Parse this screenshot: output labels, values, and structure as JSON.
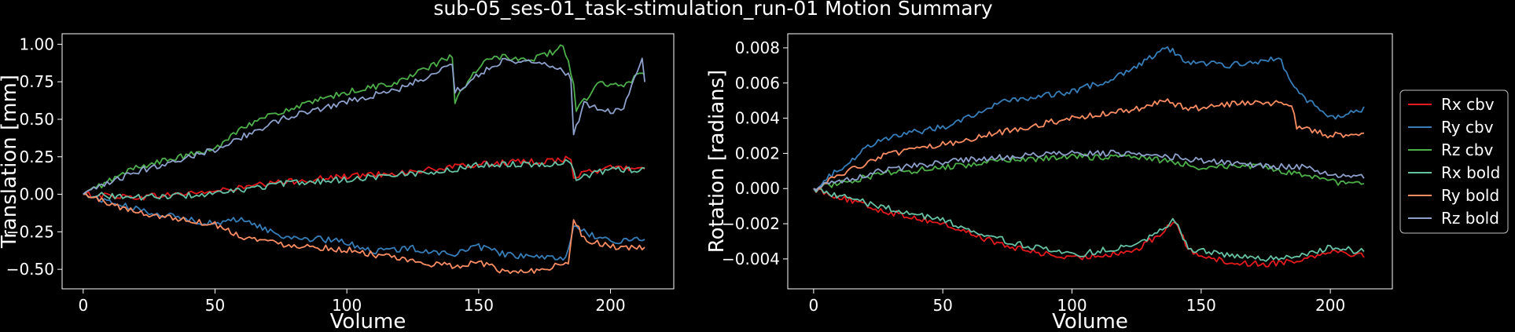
{
  "figure_title": "sub-05_ses-01_task-stimulation_run-01 Motion Summary",
  "colors": {
    "background": "#000000",
    "foreground": "#ffffff",
    "Rx cbv": "#e41a1c",
    "Ry cbv": "#377eb8",
    "Rz cbv": "#4daf4a",
    "Rx bold": "#66c2a5",
    "Ry bold": "#fc8d62",
    "Rz bold": "#8da0cb"
  },
  "chart_data": [
    {
      "type": "line",
      "xlabel": "Volume",
      "ylabel": "Translation [mm]",
      "xlim": [
        -8,
        224
      ],
      "ylim": [
        -0.63,
        1.07
      ],
      "xticks": [
        0,
        50,
        100,
        150,
        200
      ],
      "yticks": [
        -0.5,
        -0.25,
        0.0,
        0.25,
        0.5,
        0.75,
        1.0
      ],
      "yticklabels": [
        "−0.50",
        "−0.25",
        "0.00",
        "0.25",
        "0.50",
        "0.75",
        "1.00"
      ],
      "grid": false,
      "n_volumes": 214,
      "series": [
        {
          "color": "#e41a1c",
          "points": [
            [
              0,
              0.0
            ],
            [
              20,
              -0.02
            ],
            [
              50,
              0.02
            ],
            [
              75,
              0.08
            ],
            [
              100,
              0.12
            ],
            [
              125,
              0.15
            ],
            [
              140,
              0.18
            ],
            [
              150,
              0.2
            ],
            [
              160,
              0.21
            ],
            [
              175,
              0.22
            ],
            [
              185,
              0.24
            ],
            [
              186,
              0.12
            ],
            [
              200,
              0.18
            ],
            [
              213,
              0.17
            ]
          ]
        },
        {
          "color": "#377eb8",
          "points": [
            [
              0,
              0.0
            ],
            [
              20,
              -0.1
            ],
            [
              50,
              -0.2
            ],
            [
              60,
              -0.16
            ],
            [
              75,
              -0.28
            ],
            [
              90,
              -0.3
            ],
            [
              100,
              -0.32
            ],
            [
              110,
              -0.38
            ],
            [
              125,
              -0.36
            ],
            [
              140,
              -0.4
            ],
            [
              150,
              -0.35
            ],
            [
              160,
              -0.4
            ],
            [
              175,
              -0.43
            ],
            [
              183,
              -0.42
            ],
            [
              186,
              -0.22
            ],
            [
              200,
              -0.32
            ],
            [
              213,
              -0.29
            ]
          ]
        },
        {
          "color": "#4daf4a",
          "points": [
            [
              0,
              0.0
            ],
            [
              20,
              0.18
            ],
            [
              50,
              0.3
            ],
            [
              60,
              0.45
            ],
            [
              75,
              0.55
            ],
            [
              100,
              0.68
            ],
            [
              120,
              0.75
            ],
            [
              135,
              0.88
            ],
            [
              140,
              0.92
            ],
            [
              141,
              0.62
            ],
            [
              148,
              0.8
            ],
            [
              155,
              0.92
            ],
            [
              170,
              0.9
            ],
            [
              180,
              0.96
            ],
            [
              182,
              1.0
            ],
            [
              186,
              0.75
            ],
            [
              187,
              0.55
            ],
            [
              195,
              0.74
            ],
            [
              205,
              0.72
            ],
            [
              213,
              0.82
            ]
          ]
        },
        {
          "color": "#66c2a5",
          "points": [
            [
              0,
              0.0
            ],
            [
              20,
              -0.02
            ],
            [
              50,
              0.0
            ],
            [
              75,
              0.07
            ],
            [
              100,
              0.1
            ],
            [
              125,
              0.14
            ],
            [
              140,
              0.16
            ],
            [
              150,
              0.2
            ],
            [
              175,
              0.2
            ],
            [
              185,
              0.22
            ],
            [
              187,
              0.1
            ],
            [
              200,
              0.17
            ],
            [
              213,
              0.16
            ]
          ]
        },
        {
          "color": "#fc8d62",
          "points": [
            [
              0,
              0.0
            ],
            [
              20,
              -0.12
            ],
            [
              50,
              -0.2
            ],
            [
              60,
              -0.28
            ],
            [
              75,
              -0.33
            ],
            [
              100,
              -0.37
            ],
            [
              110,
              -0.4
            ],
            [
              125,
              -0.45
            ],
            [
              140,
              -0.48
            ],
            [
              150,
              -0.45
            ],
            [
              160,
              -0.52
            ],
            [
              175,
              -0.5
            ],
            [
              184,
              -0.45
            ],
            [
              186,
              -0.15
            ],
            [
              190,
              -0.3
            ],
            [
              200,
              -0.35
            ],
            [
              213,
              -0.36
            ]
          ]
        },
        {
          "color": "#8da0cb",
          "points": [
            [
              0,
              0.0
            ],
            [
              20,
              0.15
            ],
            [
              50,
              0.3
            ],
            [
              60,
              0.38
            ],
            [
              75,
              0.5
            ],
            [
              100,
              0.62
            ],
            [
              120,
              0.7
            ],
            [
              135,
              0.82
            ],
            [
              140,
              0.88
            ],
            [
              141,
              0.68
            ],
            [
              150,
              0.8
            ],
            [
              160,
              0.9
            ],
            [
              170,
              0.88
            ],
            [
              180,
              0.85
            ],
            [
              185,
              0.78
            ],
            [
              186,
              0.4
            ],
            [
              190,
              0.6
            ],
            [
              200,
              0.55
            ],
            [
              205,
              0.58
            ],
            [
              212,
              0.9
            ],
            [
              213,
              0.75
            ]
          ]
        }
      ]
    },
    {
      "type": "line",
      "xlabel": "Volume",
      "ylabel": "Rotation [radians]",
      "xlim": [
        -10,
        224
      ],
      "ylim": [
        -0.0057,
        0.0088
      ],
      "xticks": [
        0,
        50,
        100,
        150,
        200
      ],
      "yticks": [
        -0.004,
        -0.002,
        0.0,
        0.002,
        0.004,
        0.006,
        0.008
      ],
      "yticklabels": [
        "−0.004",
        "−0.002",
        "0.000",
        "0.002",
        "0.004",
        "0.006",
        "0.008"
      ],
      "grid": false,
      "legend": {
        "placement": "outside-right",
        "entries": [
          "Rx cbv",
          "Ry cbv",
          "Rz cbv",
          "Rx bold",
          "Ry bold",
          "Rz bold"
        ]
      },
      "n_volumes": 214,
      "series": [
        {
          "name": "Rx cbv",
          "color": "#e41a1c",
          "points": [
            [
              0,
              0.0
            ],
            [
              25,
              -0.0012
            ],
            [
              50,
              -0.002
            ],
            [
              75,
              -0.0033
            ],
            [
              100,
              -0.004
            ],
            [
              125,
              -0.0035
            ],
            [
              135,
              -0.0025
            ],
            [
              140,
              -0.0018
            ],
            [
              145,
              -0.0035
            ],
            [
              160,
              -0.0042
            ],
            [
              175,
              -0.0043
            ],
            [
              190,
              -0.004
            ],
            [
              200,
              -0.0035
            ],
            [
              213,
              -0.0038
            ]
          ]
        },
        {
          "name": "Ry cbv",
          "color": "#377eb8",
          "points": [
            [
              0,
              0.0
            ],
            [
              25,
              0.0028
            ],
            [
              50,
              0.0035
            ],
            [
              75,
              0.005
            ],
            [
              100,
              0.0055
            ],
            [
              115,
              0.0062
            ],
            [
              125,
              0.007
            ],
            [
              137,
              0.008
            ],
            [
              145,
              0.0072
            ],
            [
              160,
              0.007
            ],
            [
              175,
              0.0073
            ],
            [
              180,
              0.0075
            ],
            [
              187,
              0.0055
            ],
            [
              200,
              0.004
            ],
            [
              213,
              0.0045
            ]
          ]
        },
        {
          "name": "Rz cbv",
          "color": "#4daf4a",
          "points": [
            [
              0,
              0.0
            ],
            [
              25,
              0.0008
            ],
            [
              50,
              0.0012
            ],
            [
              75,
              0.0016
            ],
            [
              100,
              0.0018
            ],
            [
              125,
              0.0018
            ],
            [
              140,
              0.0015
            ],
            [
              150,
              0.0012
            ],
            [
              160,
              0.0013
            ],
            [
              175,
              0.0012
            ],
            [
              190,
              0.0007
            ],
            [
              200,
              0.0004
            ],
            [
              213,
              0.0002
            ]
          ]
        },
        {
          "name": "Rx bold",
          "color": "#66c2a5",
          "points": [
            [
              0,
              0.0
            ],
            [
              25,
              -0.001
            ],
            [
              50,
              -0.0018
            ],
            [
              75,
              -0.003
            ],
            [
              100,
              -0.0038
            ],
            [
              125,
              -0.0032
            ],
            [
              135,
              -0.0022
            ],
            [
              140,
              -0.0018
            ],
            [
              145,
              -0.0034
            ],
            [
              160,
              -0.0038
            ],
            [
              175,
              -0.004
            ],
            [
              190,
              -0.0038
            ],
            [
              200,
              -0.0033
            ],
            [
              213,
              -0.0036
            ]
          ]
        },
        {
          "name": "Ry bold",
          "color": "#fc8d62",
          "points": [
            [
              0,
              0.0
            ],
            [
              25,
              0.0018
            ],
            [
              50,
              0.0025
            ],
            [
              75,
              0.0033
            ],
            [
              100,
              0.004
            ],
            [
              125,
              0.0045
            ],
            [
              137,
              0.005
            ],
            [
              145,
              0.0045
            ],
            [
              160,
              0.0048
            ],
            [
              175,
              0.0049
            ],
            [
              185,
              0.0048
            ],
            [
              187,
              0.0035
            ],
            [
              200,
              0.003
            ],
            [
              213,
              0.0032
            ]
          ]
        },
        {
          "name": "Rz bold",
          "color": "#8da0cb",
          "points": [
            [
              0,
              0.0
            ],
            [
              25,
              0.001
            ],
            [
              50,
              0.0015
            ],
            [
              75,
              0.0018
            ],
            [
              100,
              0.002
            ],
            [
              125,
              0.002
            ],
            [
              140,
              0.0018
            ],
            [
              150,
              0.0016
            ],
            [
              160,
              0.0015
            ],
            [
              175,
              0.0013
            ],
            [
              190,
              0.0012
            ],
            [
              200,
              0.0008
            ],
            [
              213,
              0.0007
            ]
          ]
        }
      ]
    }
  ]
}
